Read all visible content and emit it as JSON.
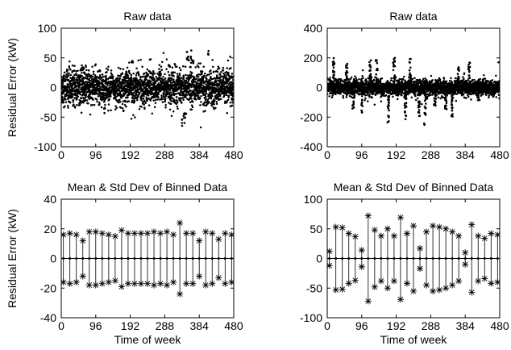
{
  "chart_data": [
    {
      "type": "scatter",
      "title": "Raw data",
      "ylabel": "Residual Error (kW)",
      "xlabel": "",
      "xlim": [
        0,
        480
      ],
      "ylim": [
        -100,
        100
      ],
      "xticks": [
        0,
        96,
        192,
        288,
        384,
        480
      ],
      "yticks": [
        -100,
        -50,
        0,
        50,
        100
      ],
      "description": "dense cloud of black points, mostly within ±25 kW, outliers to about ±70 kW",
      "spread": 14,
      "outliers": [
        {
          "x": 338,
          "y": -68
        },
        {
          "x": 342,
          "y": -62
        },
        {
          "x": 346,
          "y": -55
        },
        {
          "x": 350,
          "y": 60
        },
        {
          "x": 354,
          "y": 55
        },
        {
          "x": 362,
          "y": 65
        },
        {
          "x": 368,
          "y": 50
        },
        {
          "x": 408,
          "y": 72
        },
        {
          "x": 198,
          "y": 45
        },
        {
          "x": 300,
          "y": 40
        },
        {
          "x": 120,
          "y": -45
        },
        {
          "x": 62,
          "y": 40
        }
      ]
    },
    {
      "type": "scatter",
      "title": "Raw data",
      "ylabel": "",
      "xlabel": "",
      "xlim": [
        0,
        480
      ],
      "ylim": [
        -400,
        400
      ],
      "xticks": [
        0,
        96,
        192,
        288,
        384,
        480
      ],
      "yticks": [
        -400,
        -200,
        0,
        200,
        400
      ],
      "description": "points mostly within ±50 kW with vertical spikes to about ±250 kW",
      "spread": 25,
      "spikes": [
        {
          "x": 18,
          "y": 200
        },
        {
          "x": 54,
          "y": 175
        },
        {
          "x": 72,
          "y": -150
        },
        {
          "x": 96,
          "y": -180
        },
        {
          "x": 120,
          "y": 220
        },
        {
          "x": 138,
          "y": 190
        },
        {
          "x": 170,
          "y": -240
        },
        {
          "x": 186,
          "y": 200
        },
        {
          "x": 218,
          "y": -220
        },
        {
          "x": 230,
          "y": 200
        },
        {
          "x": 256,
          "y": -195
        },
        {
          "x": 272,
          "y": -260
        },
        {
          "x": 300,
          "y": -140
        },
        {
          "x": 330,
          "y": -150
        },
        {
          "x": 348,
          "y": -205
        },
        {
          "x": 365,
          "y": 140
        },
        {
          "x": 395,
          "y": 195
        },
        {
          "x": 420,
          "y": -90
        }
      ]
    },
    {
      "type": "errorbar",
      "title": "Mean & Std Dev of Binned Data",
      "ylabel": "Residual Error (kW)",
      "xlabel": "Time of week",
      "xlim": [
        0,
        480
      ],
      "ylim": [
        -40,
        40
      ],
      "xticks": [
        0,
        96,
        192,
        288,
        384,
        480
      ],
      "yticks": [
        -40,
        -20,
        0,
        20,
        40
      ],
      "x": [
        6,
        24,
        42,
        60,
        78,
        96,
        114,
        132,
        150,
        168,
        186,
        204,
        222,
        240,
        258,
        276,
        294,
        312,
        330,
        348,
        366,
        384,
        402,
        420,
        438,
        456,
        474
      ],
      "mean": [
        0,
        0,
        0,
        0,
        0,
        0,
        0,
        0,
        0,
        0,
        0,
        0,
        0,
        0,
        0,
        0,
        0,
        0,
        0,
        0,
        0,
        0,
        0,
        0,
        0,
        0,
        0
      ],
      "std": [
        16,
        17,
        16,
        12,
        18,
        18,
        17,
        16,
        15,
        19,
        17,
        17,
        17,
        17,
        18,
        17,
        18,
        16,
        24,
        17,
        17,
        12,
        18,
        17,
        13,
        17,
        16
      ]
    },
    {
      "type": "errorbar",
      "title": "Mean & Std Dev of Binned Data",
      "ylabel": "",
      "xlabel": "Time of week",
      "xlim": [
        0,
        480
      ],
      "ylim": [
        -100,
        100
      ],
      "xticks": [
        0,
        96,
        192,
        288,
        384,
        480
      ],
      "yticks": [
        -100,
        -50,
        0,
        50,
        100
      ],
      "x": [
        6,
        24,
        42,
        60,
        78,
        96,
        114,
        132,
        150,
        168,
        186,
        204,
        222,
        240,
        258,
        276,
        294,
        312,
        330,
        348,
        366,
        384,
        402,
        420,
        438,
        456,
        474
      ],
      "mean": [
        0,
        0,
        0,
        0,
        0,
        0,
        0,
        0,
        0,
        0,
        0,
        0,
        0,
        0,
        0,
        0,
        0,
        0,
        0,
        0,
        0,
        0,
        0,
        0,
        0,
        0,
        0
      ],
      "std": [
        12,
        53,
        52,
        42,
        37,
        14,
        72,
        48,
        38,
        50,
        38,
        69,
        42,
        55,
        17,
        45,
        55,
        53,
        50,
        45,
        38,
        10,
        57,
        38,
        34,
        42,
        40
      ]
    }
  ]
}
